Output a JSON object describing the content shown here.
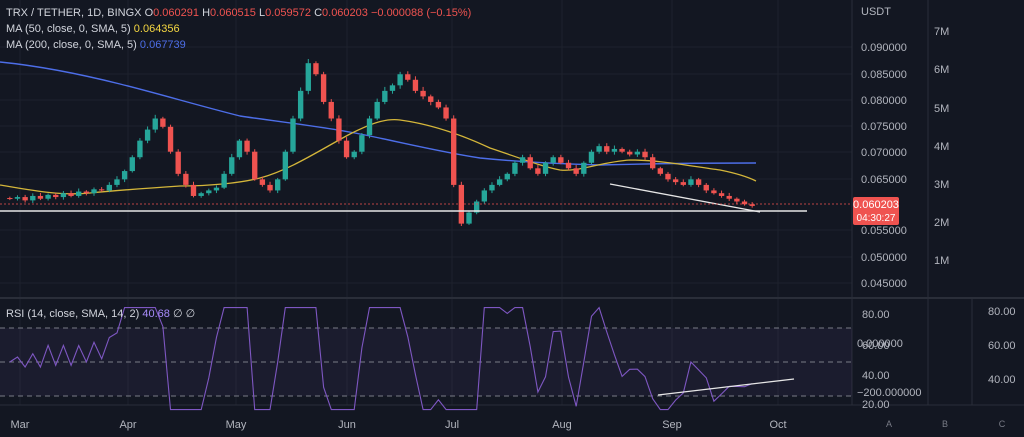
{
  "header": {
    "symbol": "TRX / TETHER, 1D, BINGX",
    "o_label": "O",
    "o_value": "0.060291",
    "h_label": "H",
    "h_value": "0.060515",
    "l_label": "L",
    "l_value": "0.059572",
    "c_label": "C",
    "c_value": "0.060203",
    "change": "−0.000088 (−0.15%)",
    "ma50_label": "MA (50, close, 0, SMA, 5)",
    "ma50_value": "0.064356",
    "ma200_label": "MA (200, close, 0, SMA, 5)",
    "ma200_value": "0.067739"
  },
  "rsi_legend": {
    "label": "RSI (14, close, SMA, 14, 2)",
    "value": "40.68",
    "extra": "∅ ∅"
  },
  "price_axis": {
    "unit": "USDT",
    "ticks": [
      "0.090000",
      "0.085000",
      "0.080000",
      "0.075000",
      "0.070000",
      "0.065000",
      "0.055000",
      "0.050000",
      "0.045000"
    ],
    "current_price": "0.060203",
    "countdown": "04:30:27"
  },
  "volume_axis": {
    "ticks": [
      "7M",
      "6M",
      "5M",
      "4M",
      "3M",
      "2M",
      "1M"
    ]
  },
  "rsi_axis_inner": {
    "ticks": [
      "80.00",
      "60.00",
      "40.00",
      "20.00",
      "0.000000",
      "−200.000000"
    ]
  },
  "rsi_axis_outer": {
    "ticks": [
      "80.00",
      "60.00",
      "40.00"
    ]
  },
  "time_axis": {
    "ticks": [
      "Mar",
      "Apr",
      "May",
      "Jun",
      "Jul",
      "Aug",
      "Sep",
      "Oct"
    ]
  },
  "corner_buttons": [
    "A",
    "B",
    "C"
  ],
  "colors": {
    "background": "#131722",
    "up": "#26a69a",
    "down": "#ef5350",
    "ma50": "#f5d742",
    "ma200": "#4d6ee8",
    "rsi": "#7e57c2",
    "support_line": "#ffffff",
    "price_badge": "#ef5350"
  },
  "chart_data": {
    "type": "candlestick",
    "x_months": [
      "Mar",
      "Apr",
      "May",
      "Jun",
      "Jul",
      "Aug",
      "Sep",
      "Oct"
    ],
    "price_range": [
      0.045,
      0.092
    ],
    "candles_approx_close": [
      0.0615,
      0.0618,
      0.0612,
      0.062,
      0.0615,
      0.0622,
      0.0618,
      0.0625,
      0.062,
      0.0628,
      0.0625,
      0.0632,
      0.063,
      0.064,
      0.065,
      0.0665,
      0.069,
      0.072,
      0.074,
      0.076,
      0.0745,
      0.07,
      0.066,
      0.064,
      0.062,
      0.0625,
      0.063,
      0.0635,
      0.066,
      0.069,
      0.072,
      0.07,
      0.065,
      0.064,
      0.063,
      0.065,
      0.07,
      0.076,
      0.081,
      0.086,
      0.084,
      0.079,
      0.076,
      0.072,
      0.069,
      0.07,
      0.073,
      0.076,
      0.079,
      0.081,
      0.082,
      0.084,
      0.083,
      0.081,
      0.08,
      0.079,
      0.078,
      0.076,
      0.064,
      0.057,
      0.059,
      0.061,
      0.063,
      0.064,
      0.065,
      0.066,
      0.068,
      0.069,
      0.067,
      0.066,
      0.068,
      0.069,
      0.068,
      0.067,
      0.066,
      0.068,
      0.07,
      0.071,
      0.07,
      0.0705,
      0.07,
      0.0695,
      0.07,
      0.069,
      0.067,
      0.066,
      0.065,
      0.0645,
      0.064,
      0.065,
      0.064,
      0.063,
      0.0625,
      0.062,
      0.0615,
      0.061,
      0.0605,
      0.0602
    ],
    "ma50_level": 0.064356,
    "ma200_level": 0.067739,
    "support_level": 0.0602,
    "rsi_last": 40.68,
    "rsi_levels": [
      70,
      50,
      30
    ],
    "annotations": [
      "descending trendline (price)",
      "ascending trendline (RSI divergence)",
      "horizontal support"
    ]
  }
}
